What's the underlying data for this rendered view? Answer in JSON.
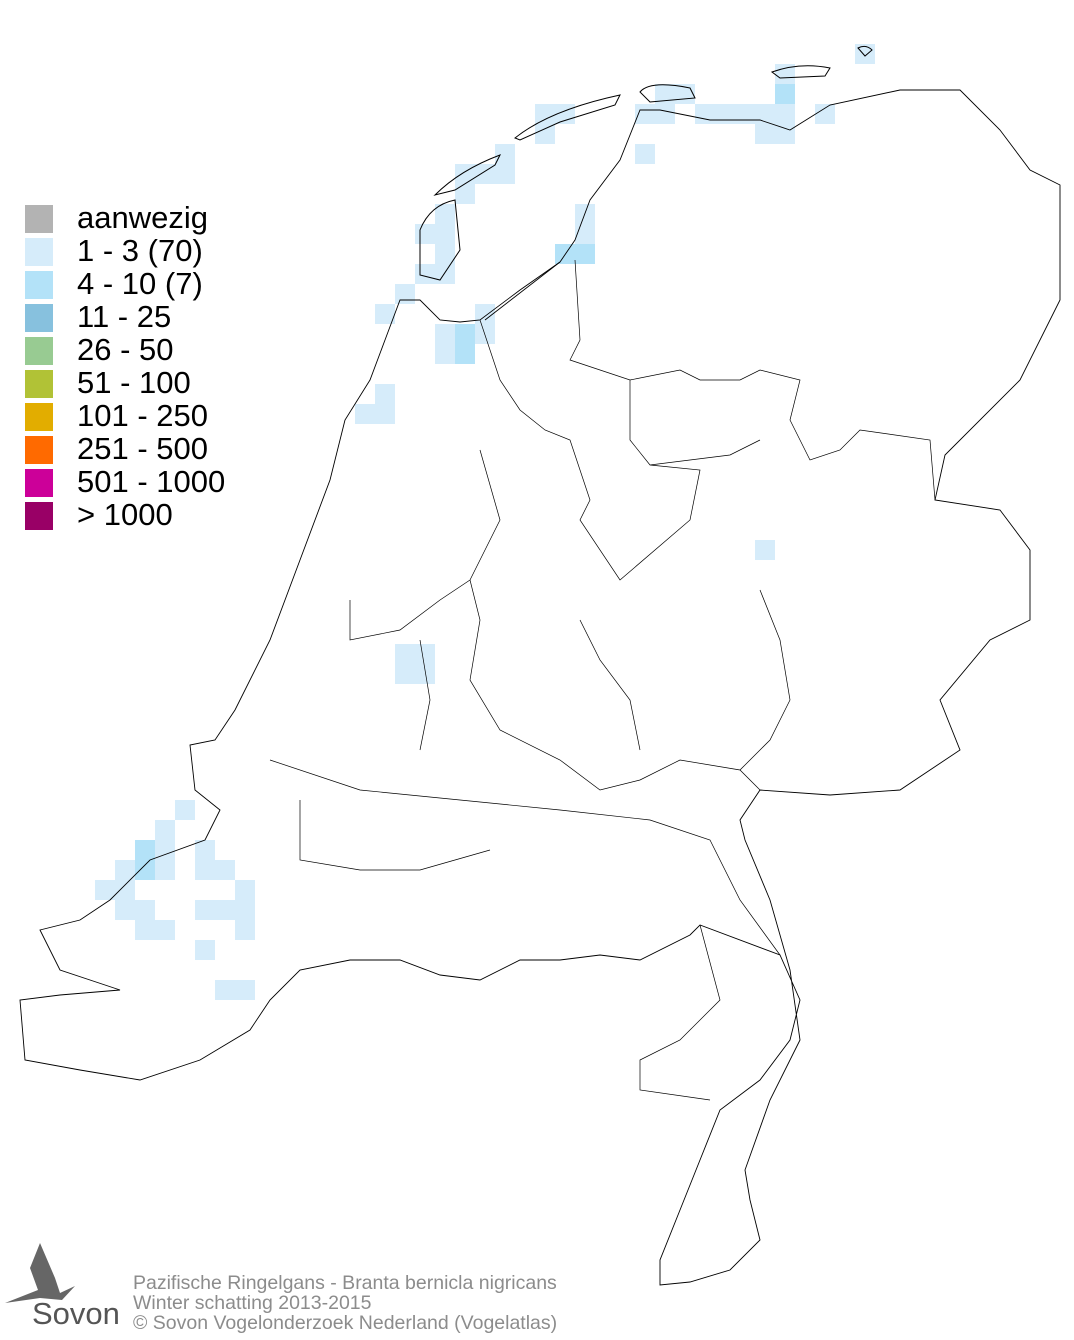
{
  "legend": {
    "items": [
      {
        "label": "aanwezig",
        "color": "#b3b3b3"
      },
      {
        "label": "1 - 3 (70)",
        "color": "#d6ecfa"
      },
      {
        "label": "4 - 10 (7)",
        "color": "#b3e2f8"
      },
      {
        "label": "11 - 25",
        "color": "#87c1de"
      },
      {
        "label": "26 - 50",
        "color": "#98cb92"
      },
      {
        "label": "51 - 100",
        "color": "#b1c236"
      },
      {
        "label": "101 - 250",
        "color": "#e2ad00"
      },
      {
        "label": "251 - 500",
        "color": "#ff6a00"
      },
      {
        "label": "501 - 1000",
        "color": "#cc0099"
      },
      {
        "label": "> 1000",
        "color": "#990066"
      }
    ]
  },
  "footer": {
    "species": "Pazifische Ringelgans - Branta bernicla nigricans",
    "period": "Winter schatting 2013-2015",
    "copyright": "© Sovon Vogelonderzoek Nederland (Vogelatlas)"
  },
  "logo": {
    "text": "Sovon"
  },
  "map": {
    "outline_color": "#000000",
    "background": "#ffffff"
  }
}
